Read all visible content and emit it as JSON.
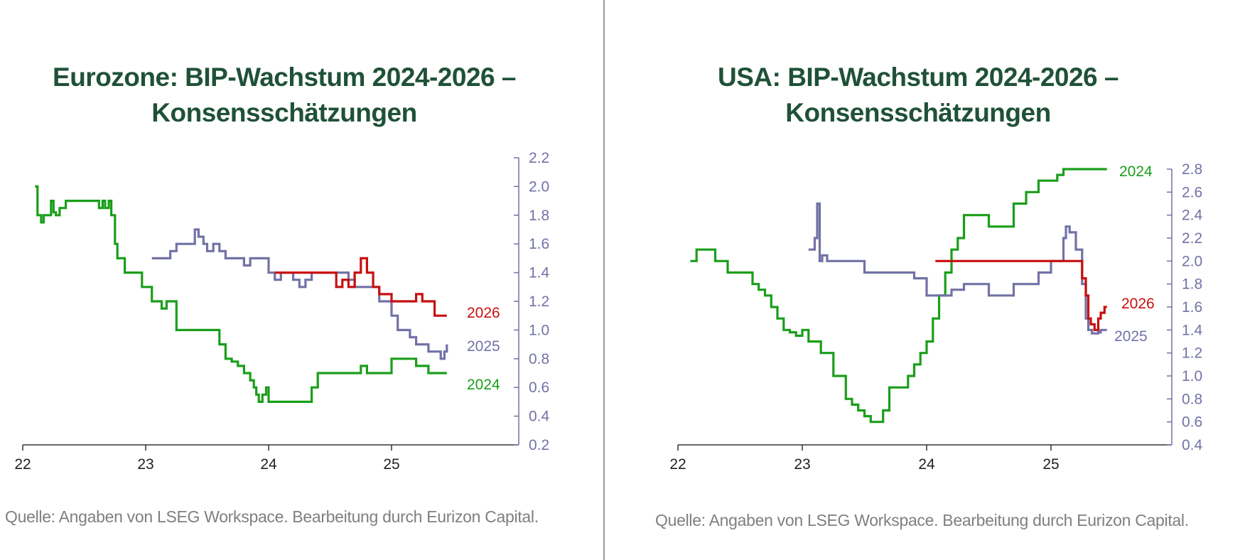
{
  "colors": {
    "title": "#1f5138",
    "axis_right": "#7272a6",
    "axis_bottom": "#333333",
    "source": "#7f7f7f",
    "divider": "#9a9a9a"
  },
  "chart_data": [
    {
      "type": "line",
      "title_line1": "Eurozone: BIP-Wachstum 2024-2026 –",
      "title_line2": "Konsensschätzungen",
      "source": "Quelle: Angaben von LSEG Workspace. Bearbeitung durch Eurizon Capital.",
      "xlabel": "",
      "ylabel": "",
      "xlim": [
        22,
        26
      ],
      "ylim": [
        0.2,
        2.2
      ],
      "x_ticks": [
        22,
        23,
        24,
        25
      ],
      "x_tick_labels": [
        "22",
        "23",
        "24",
        "25"
      ],
      "y_ticks": [
        0.2,
        0.4,
        0.6,
        0.8,
        1.0,
        1.2,
        1.4,
        1.6,
        1.8,
        2.0,
        2.2
      ],
      "y_tick_labels": [
        "0.2",
        "0.4",
        "0.6",
        "0.8",
        "1.0",
        "1.2",
        "1.4",
        "1.6",
        "1.8",
        "2.0",
        "2.2"
      ],
      "y_axis_side": "right",
      "grid": false,
      "series": [
        {
          "name": "2024",
          "color": "#1a9e1a",
          "x": [
            22.1,
            22.12,
            22.15,
            22.17,
            22.2,
            22.23,
            22.25,
            22.27,
            22.3,
            22.35,
            22.4,
            22.5,
            22.6,
            22.62,
            22.65,
            22.67,
            22.7,
            22.72,
            22.75,
            22.77,
            22.8,
            22.83,
            22.9,
            22.97,
            23.0,
            23.05,
            23.1,
            23.13,
            23.17,
            23.2,
            23.25,
            23.3,
            23.4,
            23.5,
            23.6,
            23.65,
            23.7,
            23.75,
            23.8,
            23.85,
            23.88,
            23.9,
            23.92,
            23.95,
            23.98,
            24.0,
            24.02,
            24.05,
            24.1,
            24.2,
            24.3,
            24.35,
            24.4,
            24.5,
            24.6,
            24.7,
            24.75,
            24.8,
            24.85,
            24.9,
            24.95,
            25.0,
            25.1,
            25.2,
            25.3,
            25.45
          ],
          "y": [
            2.0,
            1.8,
            1.75,
            1.8,
            1.8,
            1.9,
            1.82,
            1.8,
            1.85,
            1.9,
            1.9,
            1.9,
            1.9,
            1.85,
            1.9,
            1.85,
            1.9,
            1.8,
            1.6,
            1.5,
            1.5,
            1.4,
            1.4,
            1.3,
            1.3,
            1.2,
            1.2,
            1.15,
            1.2,
            1.2,
            1.0,
            1.0,
            1.0,
            1.0,
            0.9,
            0.8,
            0.78,
            0.75,
            0.7,
            0.65,
            0.6,
            0.55,
            0.5,
            0.55,
            0.6,
            0.5,
            0.5,
            0.5,
            0.5,
            0.5,
            0.5,
            0.6,
            0.7,
            0.7,
            0.7,
            0.7,
            0.75,
            0.7,
            0.7,
            0.7,
            0.7,
            0.8,
            0.8,
            0.75,
            0.7,
            0.7
          ]
        },
        {
          "name": "2025",
          "color": "#7272a6",
          "x": [
            23.05,
            23.15,
            23.2,
            23.25,
            23.35,
            23.4,
            23.43,
            23.47,
            23.5,
            23.55,
            23.6,
            23.65,
            23.7,
            23.8,
            23.85,
            23.9,
            24.0,
            24.05,
            24.1,
            24.15,
            24.2,
            24.25,
            24.3,
            24.35,
            24.4,
            24.5,
            24.6,
            24.65,
            24.7,
            24.8,
            24.85,
            24.9,
            24.95,
            25.0,
            25.05,
            25.1,
            25.15,
            25.2,
            25.25,
            25.3,
            25.35,
            25.4,
            25.43,
            25.45
          ],
          "y": [
            1.5,
            1.5,
            1.55,
            1.6,
            1.6,
            1.7,
            1.65,
            1.6,
            1.55,
            1.6,
            1.55,
            1.5,
            1.5,
            1.45,
            1.5,
            1.5,
            1.4,
            1.35,
            1.4,
            1.4,
            1.35,
            1.3,
            1.35,
            1.4,
            1.4,
            1.4,
            1.4,
            1.35,
            1.3,
            1.3,
            1.3,
            1.2,
            1.2,
            1.1,
            1.0,
            1.0,
            0.95,
            0.9,
            0.9,
            0.85,
            0.85,
            0.8,
            0.85,
            0.9
          ]
        },
        {
          "name": "2026",
          "color": "#c80f0f",
          "x": [
            24.05,
            24.1,
            24.2,
            24.3,
            24.4,
            24.5,
            24.55,
            24.6,
            24.65,
            24.7,
            24.75,
            24.8,
            24.85,
            24.9,
            25.0,
            25.1,
            25.2,
            25.25,
            25.3,
            25.35,
            25.45
          ],
          "y": [
            1.4,
            1.4,
            1.4,
            1.4,
            1.4,
            1.4,
            1.3,
            1.35,
            1.3,
            1.4,
            1.5,
            1.4,
            1.3,
            1.25,
            1.2,
            1.2,
            1.25,
            1.2,
            1.2,
            1.1,
            1.1
          ]
        }
      ]
    },
    {
      "type": "line",
      "title_line1": "USA: BIP-Wachstum 2024-2026 –",
      "title_line2": "Konsensschätzungen",
      "source": "Quelle: Angaben von LSEG Workspace. Bearbeitung durch Eurizon Capital.",
      "xlabel": "",
      "ylabel": "",
      "xlim": [
        22,
        26
      ],
      "ylim": [
        0.4,
        2.8
      ],
      "x_ticks": [
        22,
        23,
        24,
        25
      ],
      "x_tick_labels": [
        "22",
        "23",
        "24",
        "25"
      ],
      "y_ticks": [
        0.4,
        0.6,
        0.8,
        1.0,
        1.2,
        1.4,
        1.6,
        1.8,
        2.0,
        2.2,
        2.4,
        2.6,
        2.8
      ],
      "y_tick_labels": [
        "0.4",
        "0.6",
        "0.8",
        "1.0",
        "1.2",
        "1.4",
        "1.6",
        "1.8",
        "2.0",
        "2.2",
        "2.4",
        "2.6",
        "2.8"
      ],
      "y_axis_side": "right",
      "grid": false,
      "series": [
        {
          "name": "2024",
          "color": "#1a9e1a",
          "x": [
            22.1,
            22.15,
            22.25,
            22.3,
            22.4,
            22.5,
            22.6,
            22.65,
            22.7,
            22.75,
            22.8,
            22.85,
            22.9,
            22.95,
            23.0,
            23.05,
            23.1,
            23.15,
            23.2,
            23.25,
            23.3,
            23.35,
            23.4,
            23.45,
            23.5,
            23.55,
            23.6,
            23.65,
            23.7,
            23.8,
            23.85,
            23.9,
            23.95,
            24.0,
            24.05,
            24.1,
            24.15,
            24.2,
            24.25,
            24.3,
            24.4,
            24.5,
            24.6,
            24.7,
            24.8,
            24.9,
            25.0,
            25.05,
            25.1,
            25.2,
            25.3,
            25.45
          ],
          "y": [
            2.0,
            2.1,
            2.1,
            2.0,
            1.9,
            1.9,
            1.8,
            1.75,
            1.7,
            1.6,
            1.5,
            1.4,
            1.38,
            1.35,
            1.4,
            1.3,
            1.3,
            1.2,
            1.2,
            1.0,
            1.0,
            0.8,
            0.75,
            0.7,
            0.65,
            0.6,
            0.6,
            0.7,
            0.9,
            0.9,
            1.0,
            1.1,
            1.2,
            1.3,
            1.5,
            1.7,
            1.9,
            2.1,
            2.2,
            2.4,
            2.4,
            2.3,
            2.3,
            2.5,
            2.6,
            2.7,
            2.7,
            2.75,
            2.8,
            2.8,
            2.8,
            2.8
          ]
        },
        {
          "name": "2025",
          "color": "#7272a6",
          "x": [
            23.05,
            23.08,
            23.1,
            23.12,
            23.14,
            23.16,
            23.2,
            23.3,
            23.4,
            23.5,
            23.6,
            23.7,
            23.8,
            23.9,
            24.0,
            24.1,
            24.2,
            24.3,
            24.4,
            24.5,
            24.6,
            24.7,
            24.8,
            24.9,
            25.0,
            25.1,
            25.12,
            25.15,
            25.2,
            25.25,
            25.28,
            25.3,
            25.33,
            25.35,
            25.38,
            25.4,
            25.45
          ],
          "y": [
            2.1,
            2.1,
            2.2,
            2.5,
            2.0,
            2.05,
            2.0,
            2.0,
            2.0,
            1.9,
            1.9,
            1.9,
            1.9,
            1.85,
            1.7,
            1.7,
            1.75,
            1.8,
            1.8,
            1.7,
            1.7,
            1.8,
            1.8,
            1.9,
            2.0,
            2.2,
            2.3,
            2.25,
            2.1,
            1.8,
            1.5,
            1.4,
            1.37,
            1.37,
            1.38,
            1.4,
            1.4
          ]
        },
        {
          "name": "2026",
          "color": "#c80f0f",
          "x": [
            24.07,
            24.3,
            24.6,
            24.9,
            25.1,
            25.2,
            25.25,
            25.28,
            25.3,
            25.32,
            25.35,
            25.38,
            25.4,
            25.43,
            25.45
          ],
          "y": [
            2.0,
            2.0,
            2.0,
            2.0,
            2.0,
            2.0,
            1.85,
            1.7,
            1.5,
            1.45,
            1.4,
            1.5,
            1.55,
            1.6,
            1.6
          ]
        }
      ]
    }
  ]
}
